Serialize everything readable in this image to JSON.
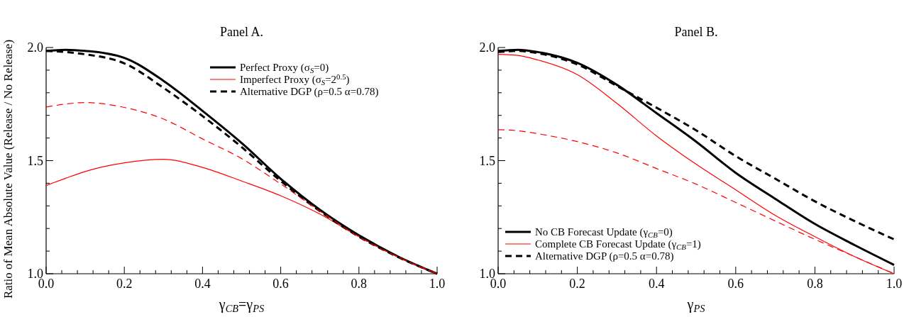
{
  "chart_data": [
    {
      "type": "line",
      "title": "Panel A.",
      "xlabel": "γ$_{CB}$=γ$_{PS}$",
      "ylabel": "Ratio of Mean Absolute Value (Release / No Release)",
      "x": [
        0,
        0.05,
        0.1,
        0.2,
        0.3,
        0.4,
        0.5,
        0.6,
        0.7,
        0.8,
        0.9,
        1.0
      ],
      "series": [
        {
          "name": "Perfect Proxy (σ$_{S}$=0)",
          "color": "#000000",
          "line_style": "solid",
          "values": [
            1.985,
            1.99,
            1.985,
            1.954,
            1.853,
            1.72,
            1.578,
            1.42,
            1.283,
            1.17,
            1.076,
            1.0
          ]
        },
        {
          "name": "Imperfect Proxy (σ$_{S}$=2$^{0.5}$)",
          "color": "#ff0000",
          "line_style": "solid",
          "values": [
            1.39,
            1.422,
            1.452,
            1.49,
            1.506,
            1.47,
            1.41,
            1.345,
            1.264,
            1.164,
            1.074,
            1.0
          ]
        },
        {
          "name": "Alternative DGP (ρ=0.5 α=0.78)",
          "color": "#000000",
          "line_style": "dashed",
          "values": [
            1.985,
            1.98,
            1.97,
            1.93,
            1.822,
            1.697,
            1.56,
            1.41,
            1.277,
            1.164,
            1.074,
            1.0
          ]
        },
        {
          "color": "#ff0000",
          "line_style": "dashed",
          "values": [
            1.737,
            1.75,
            1.757,
            1.735,
            1.684,
            1.596,
            1.509,
            1.397,
            1.277,
            1.163,
            1.074,
            1.0
          ]
        }
      ],
      "xlim": [
        0,
        1
      ],
      "ylim": [
        1,
        2
      ],
      "xticks": [
        {
          "value": 0,
          "label": "0.0"
        },
        {
          "value": 0.04,
          "label": null
        },
        {
          "value": 0.08,
          "label": null
        },
        {
          "value": 0.12,
          "label": null
        },
        {
          "value": 0.16,
          "label": null
        },
        0.2,
        {
          "value": 0.24,
          "label": null
        },
        {
          "value": 0.28,
          "label": null
        },
        {
          "value": 0.32,
          "label": null
        },
        {
          "value": 0.36,
          "label": null
        },
        0.4,
        {
          "value": 0.44,
          "label": null
        },
        {
          "value": 0.48,
          "label": null
        },
        {
          "value": 0.52,
          "label": null
        },
        {
          "value": 0.56,
          "label": null
        },
        0.6,
        {
          "value": 0.64,
          "label": null
        },
        {
          "value": 0.68,
          "label": null
        },
        {
          "value": 0.72,
          "label": null
        },
        {
          "value": 0.76,
          "label": null
        },
        0.8,
        {
          "value": 0.84,
          "label": null
        },
        {
          "value": 0.88,
          "label": null
        },
        {
          "value": 0.92,
          "label": null
        },
        {
          "value": 0.96,
          "label": null
        },
        {
          "value": 1,
          "label": "1.0"
        }
      ],
      "yticks": [
        {
          "value": 1,
          "label": "1.0"
        },
        {
          "value": 1.1,
          "label": null
        },
        {
          "value": 1.2,
          "label": null
        },
        {
          "value": 1.3,
          "label": null
        },
        {
          "value": 1.4,
          "label": null
        },
        1.5,
        {
          "value": 1.6,
          "label": null
        },
        {
          "value": 1.7,
          "label": null
        },
        {
          "value": 1.8,
          "label": null
        },
        {
          "value": 1.9,
          "label": null
        },
        {
          "value": 2,
          "label": "2.0"
        }
      ],
      "grid": false,
      "legend": "top right",
      "marker": "none"
    },
    {
      "type": "line",
      "title": "Panel B.",
      "xlabel": "γ$_{PS}$",
      "x": [
        0,
        0.05,
        0.1,
        0.2,
        0.3,
        0.4,
        0.5,
        0.6,
        0.7,
        0.8,
        0.9,
        1.0
      ],
      "series": [
        {
          "name": "No CB Forecast Update (γ$_{CB}$=0)",
          "color": "#000000",
          "line_style": "solid",
          "values": [
            1.985,
            1.99,
            1.98,
            1.932,
            1.835,
            1.71,
            1.584,
            1.446,
            1.331,
            1.22,
            1.127,
            1.039
          ]
        },
        {
          "name": "Complete CB Forecast Update (γ$_{CB}$=1)",
          "color": "#ff0000",
          "line_style": "solid",
          "values": [
            1.97,
            1.965,
            1.945,
            1.88,
            1.753,
            1.609,
            1.484,
            1.371,
            1.258,
            1.164,
            1.076,
            1.0
          ]
        },
        {
          "name": "Alternative DGP (ρ=0.5 α=0.78)",
          "color": "#000000",
          "line_style": "dashed",
          "values": [
            1.98,
            1.985,
            1.975,
            1.925,
            1.83,
            1.734,
            1.634,
            1.52,
            1.42,
            1.32,
            1.233,
            1.152
          ]
        },
        {
          "color": "#ff0000",
          "line_style": "dashed",
          "values": [
            1.637,
            1.632,
            1.619,
            1.584,
            1.534,
            1.465,
            1.396,
            1.315,
            1.233,
            1.152,
            1.076,
            1.0
          ]
        }
      ],
      "xlim": [
        0,
        1
      ],
      "ylim": [
        1,
        2
      ],
      "xticks": [
        {
          "value": 0,
          "label": "0.0"
        },
        {
          "value": 0.04,
          "label": null
        },
        {
          "value": 0.08,
          "label": null
        },
        {
          "value": 0.12,
          "label": null
        },
        {
          "value": 0.16,
          "label": null
        },
        0.2,
        {
          "value": 0.24,
          "label": null
        },
        {
          "value": 0.28,
          "label": null
        },
        {
          "value": 0.32,
          "label": null
        },
        {
          "value": 0.36,
          "label": null
        },
        0.4,
        {
          "value": 0.44,
          "label": null
        },
        {
          "value": 0.48,
          "label": null
        },
        {
          "value": 0.52,
          "label": null
        },
        {
          "value": 0.56,
          "label": null
        },
        0.6,
        {
          "value": 0.64,
          "label": null
        },
        {
          "value": 0.68,
          "label": null
        },
        {
          "value": 0.72,
          "label": null
        },
        {
          "value": 0.76,
          "label": null
        },
        0.8,
        {
          "value": 0.84,
          "label": null
        },
        {
          "value": 0.88,
          "label": null
        },
        {
          "value": 0.92,
          "label": null
        },
        {
          "value": 0.96,
          "label": null
        },
        {
          "value": 1,
          "label": "1.0"
        }
      ],
      "yticks": [
        {
          "value": 1,
          "label": "1.0"
        },
        {
          "value": 1.1,
          "label": null
        },
        {
          "value": 1.2,
          "label": null
        },
        {
          "value": 1.3,
          "label": null
        },
        {
          "value": 1.4,
          "label": null
        },
        1.5,
        {
          "value": 1.6,
          "label": null
        },
        {
          "value": 1.7,
          "label": null
        },
        {
          "value": 1.8,
          "label": null
        },
        {
          "value": 1.9,
          "label": null
        },
        {
          "value": 2,
          "label": "2.0"
        }
      ],
      "grid": false,
      "legend": "bottom left",
      "marker": "none"
    }
  ]
}
